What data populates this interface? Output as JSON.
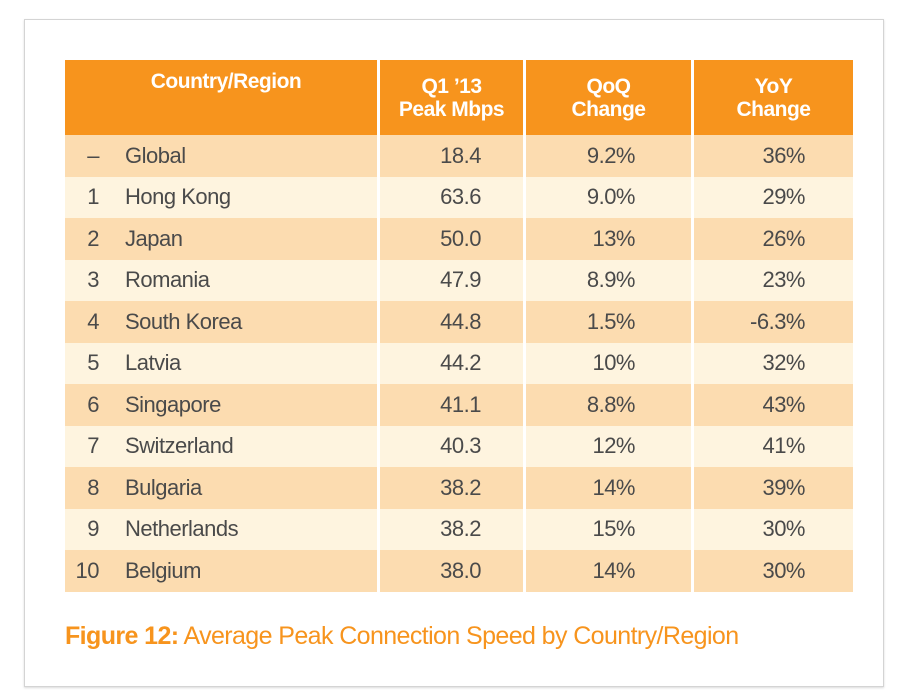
{
  "table": {
    "headers": [
      "Country/Region",
      "Q1 '13 Peak Mbps",
      "QoQ Change",
      "YoY Change"
    ],
    "header_lines": [
      [
        "Country/Region"
      ],
      [
        "Q1 ’13",
        "Peak Mbps"
      ],
      [
        "QoQ",
        "Change"
      ],
      [
        "YoY",
        "Change"
      ]
    ],
    "rows": [
      {
        "rank": "–",
        "country": "Global",
        "peak": "18.4",
        "qoq": "9.2%",
        "yoy": "36%"
      },
      {
        "rank": "1",
        "country": "Hong Kong",
        "peak": "63.6",
        "qoq": "9.0%",
        "yoy": "29%"
      },
      {
        "rank": "2",
        "country": "Japan",
        "peak": "50.0",
        "qoq": "13%",
        "yoy": "26%"
      },
      {
        "rank": "3",
        "country": "Romania",
        "peak": "47.9",
        "qoq": "8.9%",
        "yoy": "23%"
      },
      {
        "rank": "4",
        "country": "South Korea",
        "peak": "44.8",
        "qoq": "1.5%",
        "yoy": "-6.3%"
      },
      {
        "rank": "5",
        "country": "Latvia",
        "peak": "44.2",
        "qoq": "10%",
        "yoy": "32%"
      },
      {
        "rank": "6",
        "country": "Singapore",
        "peak": "41.1",
        "qoq": "8.8%",
        "yoy": "43%"
      },
      {
        "rank": "7",
        "country": "Switzerland",
        "peak": "40.3",
        "qoq": "12%",
        "yoy": "41%"
      },
      {
        "rank": "8",
        "country": "Bulgaria",
        "peak": "38.2",
        "qoq": "14%",
        "yoy": "39%"
      },
      {
        "rank": "9",
        "country": "Netherlands",
        "peak": "38.2",
        "qoq": "15%",
        "yoy": "30%"
      },
      {
        "rank": "10",
        "country": "Belgium",
        "peak": "38.0",
        "qoq": "14%",
        "yoy": "30%"
      }
    ]
  },
  "caption": {
    "label": "Figure 12:",
    "text": " Average Peak Connection Speed by Country/Region"
  },
  "colors": {
    "accent": "#f7941d",
    "row_dark": "#fcdcb0",
    "row_light": "#fef4df"
  }
}
